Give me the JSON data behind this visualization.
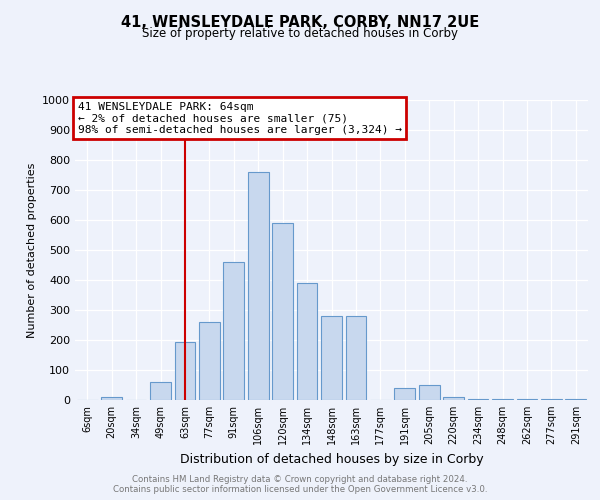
{
  "title": "41, WENSLEYDALE PARK, CORBY, NN17 2UE",
  "subtitle": "Size of property relative to detached houses in Corby",
  "xlabel": "Distribution of detached houses by size in Corby",
  "ylabel": "Number of detached properties",
  "footer_line1": "Contains HM Land Registry data © Crown copyright and database right 2024.",
  "footer_line2": "Contains public sector information licensed under the Open Government Licence v3.0.",
  "annotation_line1": "41 WENSLEYDALE PARK: 64sqm",
  "annotation_line2": "← 2% of detached houses are smaller (75)",
  "annotation_line3": "98% of semi-detached houses are larger (3,324) →",
  "bar_labels": [
    "6sqm",
    "20sqm",
    "34sqm",
    "49sqm",
    "63sqm",
    "77sqm",
    "91sqm",
    "106sqm",
    "120sqm",
    "134sqm",
    "148sqm",
    "163sqm",
    "177sqm",
    "191sqm",
    "205sqm",
    "220sqm",
    "234sqm",
    "248sqm",
    "262sqm",
    "277sqm",
    "291sqm"
  ],
  "bar_values": [
    0,
    10,
    0,
    60,
    195,
    260,
    460,
    760,
    590,
    390,
    280,
    280,
    0,
    40,
    50,
    10,
    5,
    5,
    5,
    5,
    5
  ],
  "bar_color": "#c8d8ee",
  "bar_edgecolor": "#6699cc",
  "red_line_index": 4,
  "red_line_color": "#cc0000",
  "ylim": [
    0,
    1000
  ],
  "yticks": [
    0,
    100,
    200,
    300,
    400,
    500,
    600,
    700,
    800,
    900,
    1000
  ],
  "annotation_box_color": "#cc0000",
  "bg_color": "#eef2fb"
}
